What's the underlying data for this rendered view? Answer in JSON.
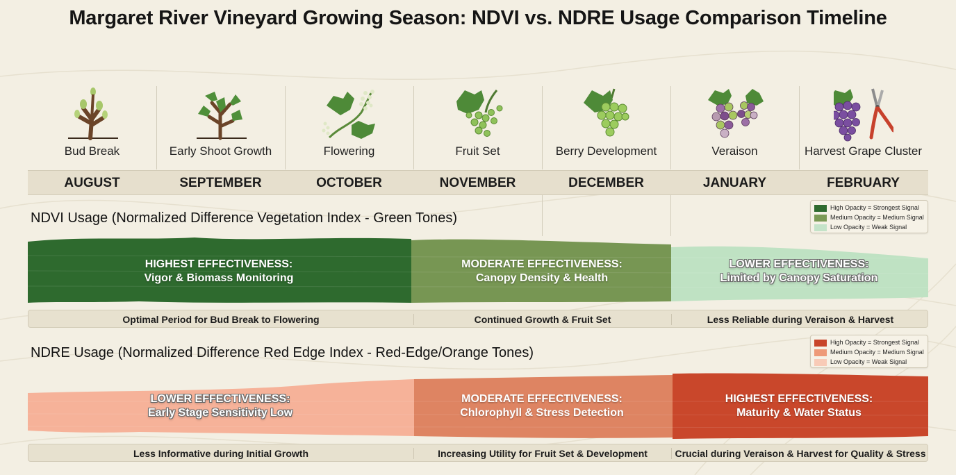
{
  "title": "Margaret River Vineyard Growing Season: NDVI vs. NDRE Usage Comparison Timeline",
  "stages": [
    {
      "label": "Bud Break",
      "icon": "bud-break-icon"
    },
    {
      "label": "Early Shoot Growth",
      "icon": "shoot-icon"
    },
    {
      "label": "Flowering",
      "icon": "flowering-vine-icon"
    },
    {
      "label": "Fruit Set",
      "icon": "fruit-set-icon"
    },
    {
      "label": "Berry Development",
      "icon": "green-grapes-icon"
    },
    {
      "label": "Veraison",
      "icon": "veraison-grapes-icon"
    },
    {
      "label": "Harvest Grape Cluster",
      "icon": "harvest-grapes-shears-icon"
    }
  ],
  "months": [
    "AUGUST",
    "SEPTEMBER",
    "OCTOBER",
    "NOVEMBER",
    "DECEMBER",
    "JANUARY",
    "FEBRUARY"
  ],
  "ndvi": {
    "title": "NDVI Usage (Normalized Difference Vegetation Index - Green Tones)",
    "legend": [
      "High Opacity = Strongest Signal",
      "Medium Opacity = Medium Signal",
      "Low Opacity = Weak Signal"
    ],
    "legend_colors": [
      "#2e6a2e",
      "#7b9a55",
      "#c4e3c8"
    ],
    "segments": [
      {
        "heading": "HIGHEST EFFECTIVENESS:",
        "detail": "Vigor & Biomass Monitoring",
        "color": "#2e6a2e",
        "level": "high"
      },
      {
        "heading": "MODERATE EFFECTIVENESS:",
        "detail": "Canopy Density & Health",
        "color": "#779653",
        "level": "medium"
      },
      {
        "heading": "LOWER EFFECTIVENESS:",
        "detail": "Limited by Canopy Saturation",
        "color": "#bfe2c3",
        "level": "low"
      }
    ],
    "captions": [
      "Optimal Period for Bud Break to Flowering",
      "Continued Growth & Fruit Set",
      "Less Reliable during Veraison & Harvest"
    ]
  },
  "ndre": {
    "title": "NDRE Usage (Normalized Difference Red Edge Index - Red-Edge/Orange Tones)",
    "legend": [
      "High Opacity = Strongest Signal",
      "Medium Opacity = Medium Signal",
      "Low Opacity = Weak Signal"
    ],
    "legend_colors": [
      "#c8452a",
      "#ee9a78",
      "#f8cbb7"
    ],
    "segments": [
      {
        "heading": "LOWER EFFECTIVENESS:",
        "detail": "Early Stage Sensitivity Low",
        "color": "#f6b299",
        "level": "low"
      },
      {
        "heading": "MODERATE EFFECTIVENESS:",
        "detail": "Chlorophyll & Stress Detection",
        "color": "#de8462",
        "level": "medium"
      },
      {
        "heading": "HIGHEST EFFECTIVENESS:",
        "detail": "Maturity & Water Status",
        "color": "#c9472b",
        "level": "high"
      }
    ],
    "captions": [
      "Less Informative during Initial Growth",
      "Increasing Utility for Fruit Set & Development",
      "Crucial during Veraison & Harvest for Quality & Stress"
    ]
  }
}
